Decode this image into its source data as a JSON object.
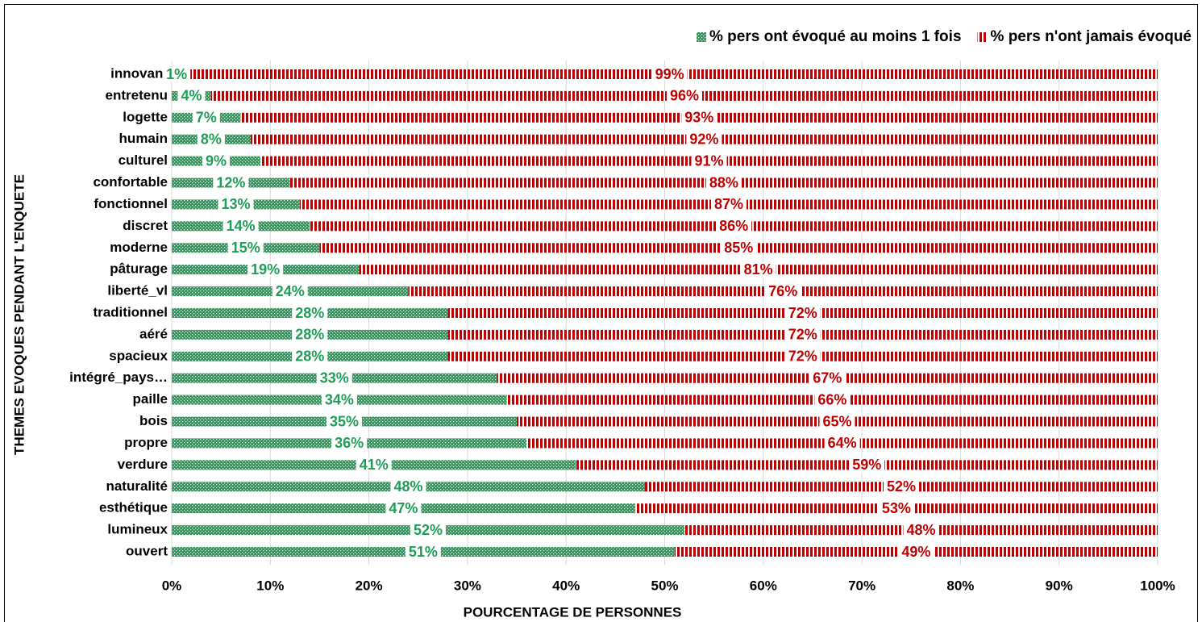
{
  "chart_data": {
    "type": "stacked_barh",
    "x_label": "POURCENTAGE DE PERSONNES",
    "y_label": "THEMES EVOQUES PENDANT L'ENQUETE",
    "categories": [
      "innovant",
      "entretenu",
      "logette",
      "humain",
      "culturel",
      "confortable",
      "fonctionnel",
      "discret",
      "moderne",
      "pâturage",
      "liberté_vl",
      "traditionnel",
      "aéré",
      "spacieux",
      "intégré_pays…",
      "paille",
      "bois",
      "propre",
      "verdure",
      "naturalité",
      "esthétique",
      "lumineux",
      "ouvert"
    ],
    "series": [
      {
        "name": "% pers ont évoqué au moins 1 fois",
        "color": "#1e9e55",
        "values": [
          1,
          4,
          7,
          8,
          9,
          12,
          13,
          14,
          15,
          19,
          24,
          28,
          28,
          28,
          33,
          34,
          35,
          36,
          41,
          48,
          47,
          52,
          51
        ],
        "value_labels": [
          "1%",
          "4%",
          "7%",
          "8%",
          "9%",
          "12%",
          "13%",
          "14%",
          "15%",
          "19%",
          "24%",
          "28%",
          "28%",
          "28%",
          "33%",
          "34%",
          "35%",
          "36%",
          "41%",
          "48%",
          "47%",
          "52%",
          "51%"
        ]
      },
      {
        "name": "% pers n'ont jamais évoqué",
        "color": "#c00000",
        "values": [
          99,
          96,
          93,
          92,
          91,
          88,
          87,
          86,
          85,
          81,
          76,
          72,
          72,
          72,
          67,
          66,
          65,
          64,
          59,
          52,
          53,
          48,
          49
        ],
        "value_labels": [
          "99%",
          "96%",
          "93%",
          "92%",
          "91%",
          "88%",
          "87%",
          "86%",
          "85%",
          "81%",
          "76%",
          "72%",
          "72%",
          "72%",
          "67%",
          "66%",
          "65%",
          "64%",
          "59%",
          "52%",
          "53%",
          "48%",
          "49%"
        ]
      }
    ],
    "xlim": [
      0,
      100
    ],
    "xticks": [
      {
        "value": 0,
        "label": "0%"
      },
      {
        "value": 10,
        "label": "10%"
      },
      {
        "value": 20,
        "label": "20%"
      },
      {
        "value": 30,
        "label": "30%"
      },
      {
        "value": 40,
        "label": "40%"
      },
      {
        "value": 50,
        "label": "50%"
      },
      {
        "value": 60,
        "label": "60%"
      },
      {
        "value": 70,
        "label": "70%"
      },
      {
        "value": 80,
        "label": "80%"
      },
      {
        "value": 90,
        "label": "90%"
      },
      {
        "value": 100,
        "label": "100%"
      }
    ],
    "grid": true,
    "legend": "top-right"
  }
}
